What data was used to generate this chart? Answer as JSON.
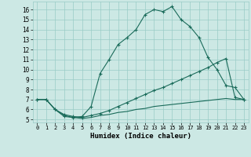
{
  "xlabel": "Humidex (Indice chaleur)",
  "bg_color": "#cce8e4",
  "grid_color": "#99ccc6",
  "line_color": "#1a6b5a",
  "xlim": [
    -0.5,
    23.5
  ],
  "ylim": [
    4.7,
    16.8
  ],
  "xticks": [
    0,
    1,
    2,
    3,
    4,
    5,
    6,
    7,
    8,
    9,
    10,
    11,
    12,
    13,
    14,
    15,
    16,
    17,
    18,
    19,
    20,
    21,
    22,
    23
  ],
  "yticks": [
    5,
    6,
    7,
    8,
    9,
    10,
    11,
    12,
    13,
    14,
    15,
    16
  ],
  "series1_x": [
    0,
    1,
    2,
    3,
    4,
    5,
    6,
    7,
    8,
    9,
    10,
    11,
    12,
    13,
    14,
    15,
    16,
    17,
    18,
    19,
    20,
    21,
    22,
    23
  ],
  "series1_y": [
    7.0,
    7.0,
    6.0,
    5.3,
    5.2,
    5.3,
    6.3,
    9.6,
    11.0,
    12.5,
    13.2,
    14.0,
    15.5,
    16.0,
    15.8,
    16.3,
    15.0,
    14.3,
    13.2,
    11.2,
    10.0,
    8.4,
    8.2,
    7.0
  ],
  "series2_x": [
    0,
    1,
    2,
    3,
    4,
    5,
    6,
    7,
    8,
    9,
    10,
    11,
    12,
    13,
    14,
    15,
    16,
    17,
    18,
    19,
    20,
    21,
    22,
    23
  ],
  "series2_y": [
    7.0,
    7.0,
    6.0,
    5.5,
    5.3,
    5.2,
    5.4,
    5.6,
    5.9,
    6.3,
    6.7,
    7.1,
    7.5,
    7.9,
    8.2,
    8.6,
    9.0,
    9.4,
    9.8,
    10.2,
    10.7,
    11.1,
    7.2,
    7.0
  ],
  "series3_x": [
    0,
    1,
    2,
    3,
    4,
    5,
    6,
    7,
    8,
    9,
    10,
    11,
    12,
    13,
    14,
    15,
    16,
    17,
    18,
    19,
    20,
    21,
    22,
    23
  ],
  "series3_y": [
    7.0,
    7.0,
    6.0,
    5.4,
    5.2,
    5.1,
    5.2,
    5.4,
    5.5,
    5.7,
    5.8,
    6.0,
    6.1,
    6.3,
    6.4,
    6.5,
    6.6,
    6.7,
    6.8,
    6.9,
    7.0,
    7.1,
    7.0,
    7.0
  ]
}
